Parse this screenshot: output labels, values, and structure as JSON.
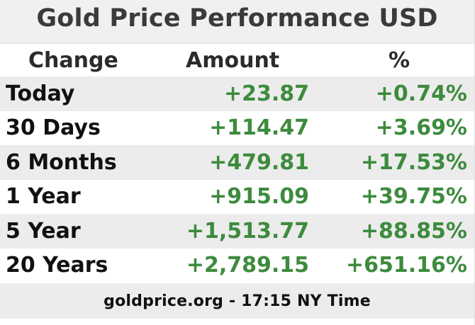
{
  "title": "Gold Price Performance USD",
  "headers": {
    "change": "Change",
    "amount": "Amount",
    "percent": "%"
  },
  "rows": [
    {
      "period": "Today",
      "amount": "+23.87",
      "percent": "+0.74%"
    },
    {
      "period": "30 Days",
      "amount": "+114.47",
      "percent": "+3.69%"
    },
    {
      "period": "6 Months",
      "amount": "+479.81",
      "percent": "+17.53%"
    },
    {
      "period": "1 Year",
      "amount": "+915.09",
      "percent": "+39.75%"
    },
    {
      "period": "5 Year",
      "amount": "+1,513.77",
      "percent": "+88.85%"
    },
    {
      "period": "20 Years",
      "amount": "+2,789.15",
      "percent": "+651.16%"
    }
  ],
  "footer": "goldprice.org - 17:15 NY Time",
  "colors": {
    "positive": "#3d8b3d",
    "title_bg": "#f0f0f0",
    "row_shade": "#ececec"
  }
}
